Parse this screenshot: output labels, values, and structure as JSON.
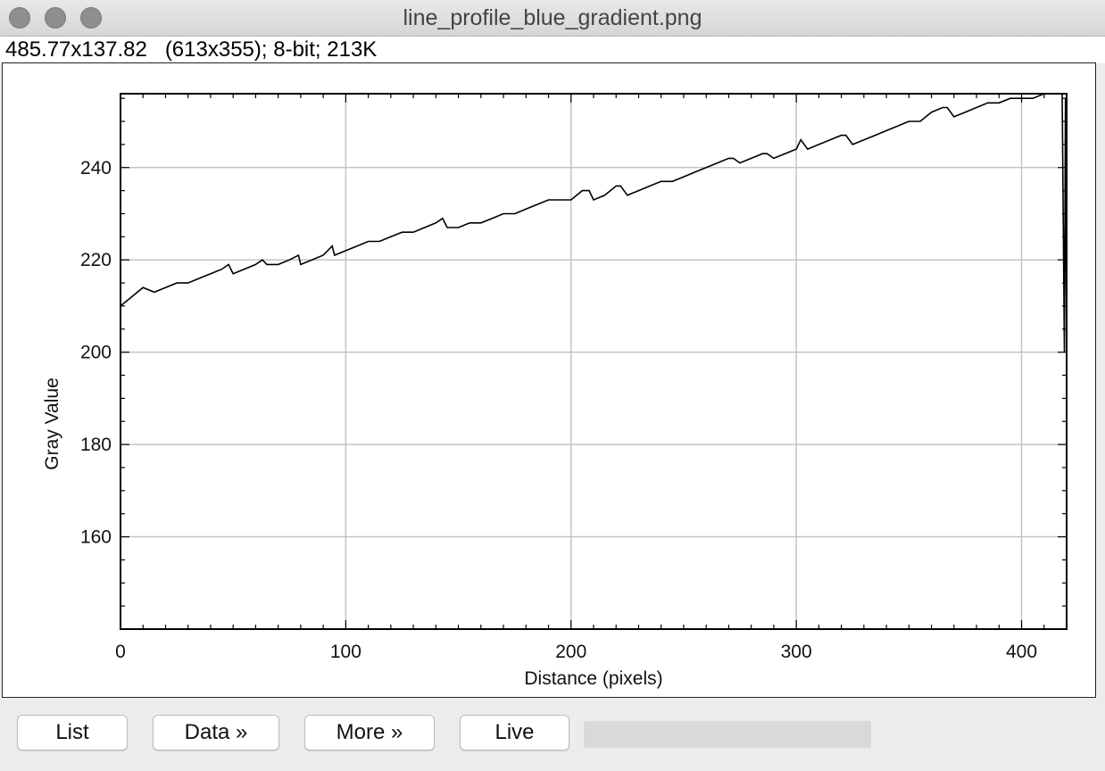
{
  "window": {
    "title": "line_profile_blue_gradient.png"
  },
  "info": {
    "text": "485.77x137.82   (613x355); 8-bit; 213K"
  },
  "buttons": {
    "list": "List",
    "data": "Data »",
    "more": "More »",
    "live": "Live"
  },
  "progress": {
    "value": 0
  },
  "chart_data": {
    "type": "line",
    "title": "",
    "xlabel": "Distance (pixels)",
    "ylabel": "Gray Value",
    "xlim": [
      0,
      420
    ],
    "ylim": [
      140,
      256
    ],
    "xticks": [
      0,
      100,
      200,
      300,
      400
    ],
    "yticks": [
      160,
      180,
      200,
      220,
      240
    ],
    "grid": true,
    "line_color": "#000000",
    "series": [
      {
        "x": [
          0,
          5,
          10,
          15,
          20,
          25,
          30,
          35,
          40,
          45,
          48,
          50,
          55,
          60,
          63,
          65,
          70,
          75,
          79,
          80,
          85,
          90,
          94,
          95,
          100,
          105,
          110,
          115,
          120,
          125,
          130,
          135,
          140,
          143,
          145,
          150,
          155,
          160,
          165,
          170,
          175,
          180,
          185,
          190,
          195,
          200,
          205,
          208,
          210,
          215,
          220,
          222,
          225,
          230,
          235,
          240,
          245,
          250,
          255,
          260,
          265,
          270,
          272,
          275,
          280,
          285,
          287,
          290,
          295,
          300,
          302,
          305,
          310,
          315,
          320,
          322,
          325,
          330,
          335,
          340,
          345,
          350,
          355,
          360,
          365,
          367,
          370,
          375,
          380,
          385,
          390,
          395,
          400,
          405,
          410,
          415,
          418,
          419,
          419.5,
          420
        ],
        "y": [
          210,
          212,
          214,
          213,
          214,
          215,
          215,
          216,
          217,
          218,
          219,
          217,
          218,
          219,
          220,
          219,
          219,
          220,
          221,
          219,
          220,
          221,
          223,
          221,
          222,
          223,
          224,
          224,
          225,
          226,
          226,
          227,
          228,
          229,
          227,
          227,
          228,
          228,
          229,
          230,
          230,
          231,
          232,
          233,
          233,
          233,
          235,
          235,
          233,
          234,
          236,
          236,
          234,
          235,
          236,
          237,
          237,
          238,
          239,
          240,
          241,
          242,
          242,
          241,
          242,
          243,
          243,
          242,
          243,
          244,
          246,
          244,
          245,
          246,
          247,
          247,
          245,
          246,
          247,
          248,
          249,
          250,
          250,
          252,
          253,
          253,
          251,
          252,
          253,
          254,
          254,
          255,
          255,
          255,
          256,
          256,
          256,
          200,
          255,
          198
        ]
      }
    ]
  }
}
